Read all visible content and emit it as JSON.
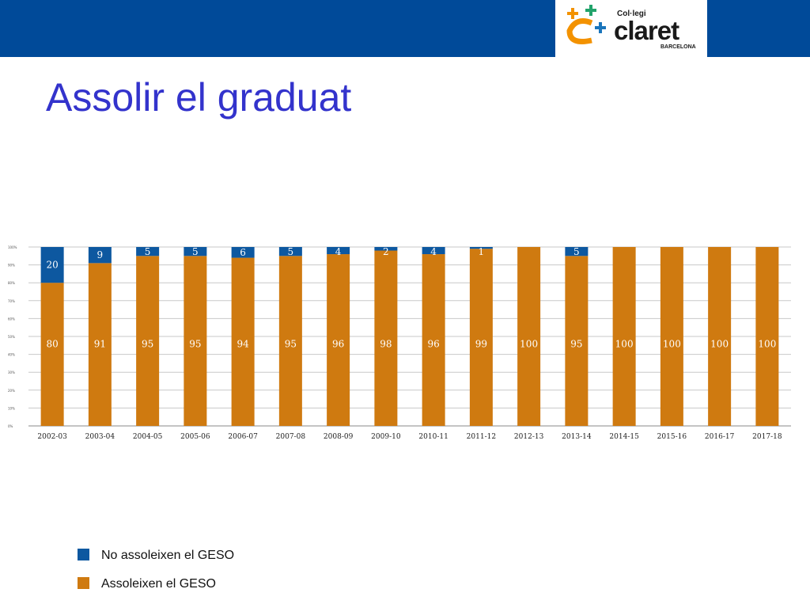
{
  "header": {
    "logo": {
      "small_text": "Col·legi",
      "main_text": "claret",
      "sub_text": "BARCELONA"
    }
  },
  "title": "Assolir el graduat",
  "colors": {
    "not_achieved": "#0d58a0",
    "achieved": "#cf7a10",
    "title": "#3333cc",
    "top_bar": "#004a99"
  },
  "legend": [
    {
      "label": "No assoleixen el GESO",
      "color": "#0d58a0"
    },
    {
      "label": "Assoleixen el GESO",
      "color": "#cf7a10"
    }
  ],
  "chart_data": {
    "type": "bar",
    "stacked": true,
    "categories": [
      "2002-03",
      "2003-04",
      "2004-05",
      "2005-06",
      "2006-07",
      "2007-08",
      "2008-09",
      "2009-10",
      "2010-11",
      "2011-12",
      "2012-13",
      "2013-14",
      "2014-15",
      "2015-16",
      "2016-17",
      "2017-18"
    ],
    "series": [
      {
        "name": "Assoleixen el GESO",
        "values": [
          80,
          91,
          95,
          95,
          94,
          95,
          96,
          98,
          96,
          99,
          100,
          95,
          100,
          100,
          100,
          100
        ]
      },
      {
        "name": "No assoleixen el GESO",
        "values": [
          20,
          9,
          5,
          5,
          6,
          5,
          4,
          2,
          4,
          1,
          0,
          5,
          0,
          0,
          0,
          0
        ]
      }
    ],
    "y_ticks": [
      "0%",
      "10%",
      "20%",
      "30%",
      "40%",
      "50%",
      "60%",
      "70%",
      "80%",
      "90%",
      "100%"
    ],
    "ylim": [
      0,
      100
    ],
    "grid": true
  }
}
